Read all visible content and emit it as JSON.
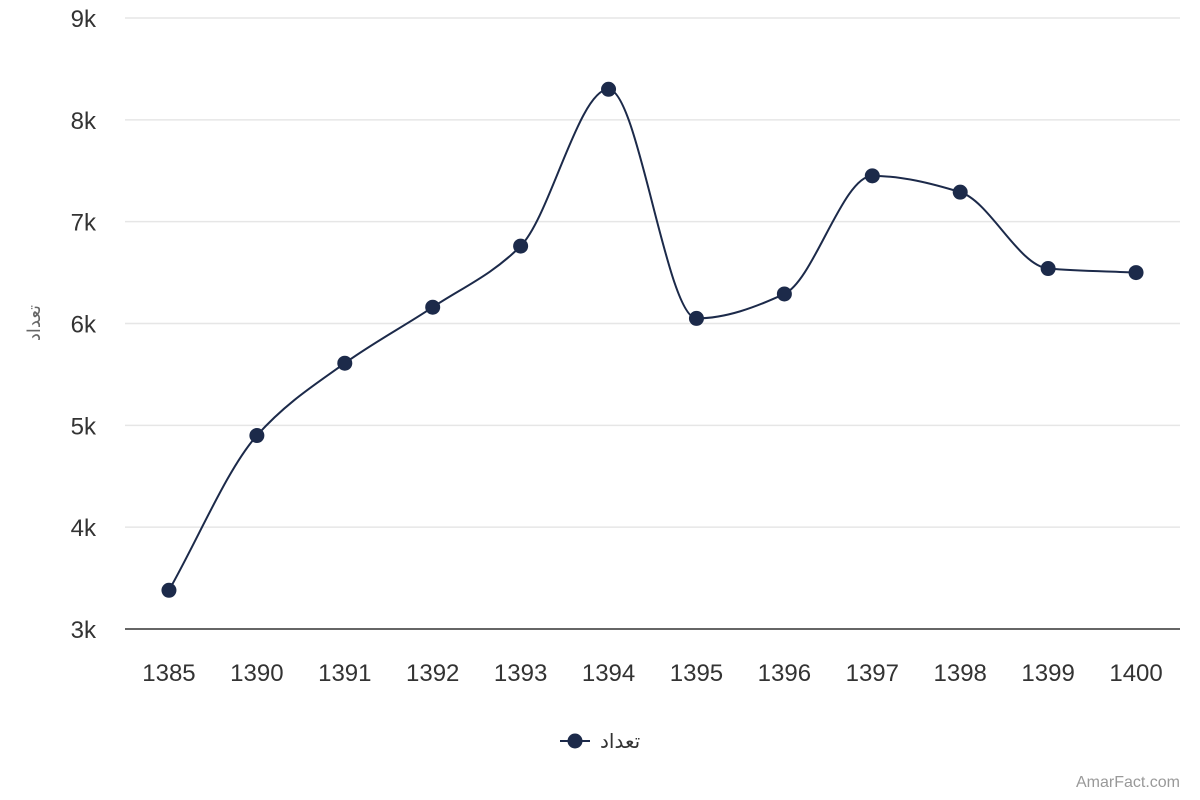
{
  "chart_data": {
    "type": "line",
    "categories": [
      "1385",
      "1390",
      "1391",
      "1392",
      "1393",
      "1394",
      "1395",
      "1396",
      "1397",
      "1398",
      "1399",
      "1400"
    ],
    "series": [
      {
        "name": "تعداد",
        "values": [
          3380,
          4900,
          5610,
          6160,
          6760,
          8300,
          6050,
          6290,
          7450,
          7290,
          6540,
          6500
        ]
      }
    ],
    "ylabel": "تعداد",
    "ylim": [
      3000,
      9000
    ],
    "yticks": [
      "3k",
      "4k",
      "5k",
      "6k",
      "7k",
      "8k",
      "9k"
    ],
    "grid": true,
    "legend_position": "bottom-center",
    "colors": {
      "series": "#1c2a4a",
      "grid": "#e6e6e6",
      "axis": "#333333"
    }
  },
  "credit": "AmarFact.com"
}
